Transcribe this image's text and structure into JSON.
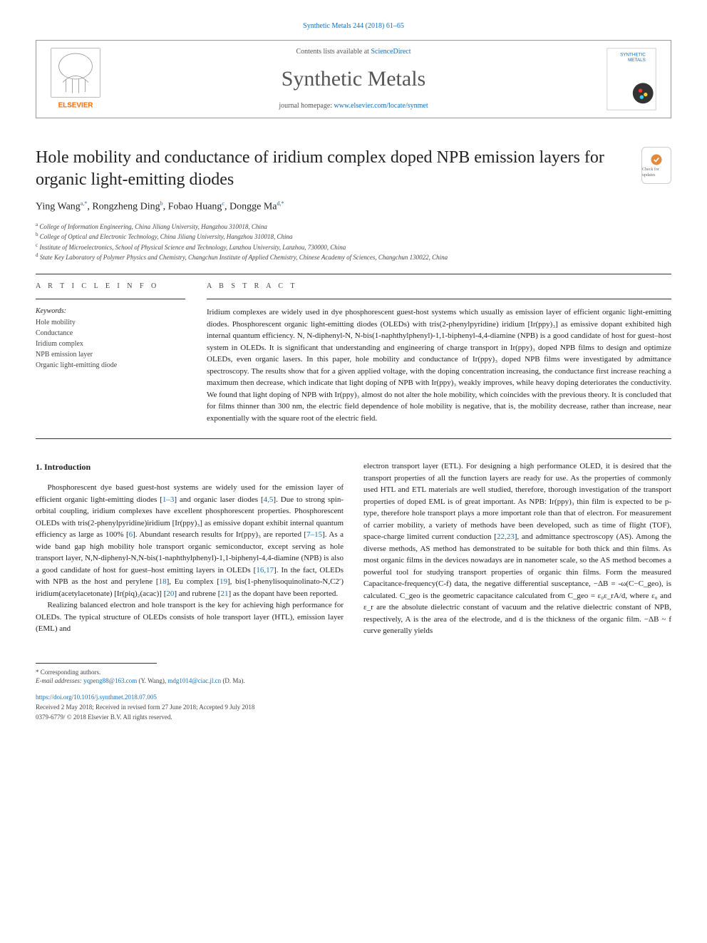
{
  "journal_ref_link": "Synthetic Metals 244 (2018) 61–65",
  "contents_text": "Contents lists available at ",
  "contents_link": "ScienceDirect",
  "journal_title": "Synthetic Metals",
  "homepage_text": "journal homepage: ",
  "homepage_link": "www.elsevier.com/locate/synmet",
  "article_title": "Hole mobility and conductance of iridium complex doped NPB emission layers for organic light-emitting diodes",
  "updates_label": "Check for updates",
  "authors": [
    {
      "name": "Ying Wang",
      "mark": "a,*"
    },
    {
      "name": "Rongzheng Ding",
      "mark": "b"
    },
    {
      "name": "Fobao Huang",
      "mark": "c"
    },
    {
      "name": "Dongge Ma",
      "mark": "d,*"
    }
  ],
  "affiliations": [
    {
      "mark": "a",
      "text": "College of Information Engineering, China Jiliang University, Hangzhou 310018, China"
    },
    {
      "mark": "b",
      "text": "College of Optical and Electronic Technology, China Jiliang University, Hangzhou 310018, China"
    },
    {
      "mark": "c",
      "text": "Institute of Microelectronics, School of Physical Science and Technology, Lanzhou University, Lanzhou, 730000, China"
    },
    {
      "mark": "d",
      "text": "State Key Laboratory of Polymer Physics and Chemistry, Changchun Institute of Applied Chemistry, Chinese Academy of Sciences, Changchun 130022, China"
    }
  ],
  "article_info_label": "A R T I C L E  I N F O",
  "keywords_label": "Keywords:",
  "keywords": [
    "Hole mobility",
    "Conductance",
    "Iridium complex",
    "NPB emission layer",
    "Organic light-emitting diode"
  ],
  "abstract_label": "A B S T R A C T",
  "abstract_text": "Iridium complexes are widely used in dye phosphorescent guest-host systems which usually as emission layer of efficient organic light-emitting diodes. Phosphorescent organic light-emitting diodes (OLEDs) with tris(2-phenylpyridine) iridium [Ir(ppy)₃] as emissive dopant exhibited high internal quantum efficiency. N, N-diphenyl-N, N-bis(1-naphthylphenyl)-1,1-biphenyl-4,4-diamine (NPB) is a good candidate of host for guest–host system in OLEDs. It is significant that understanding and engineering of charge transport in Ir(ppy)₃ doped NPB films to design and optimize OLEDs, even organic lasers. In this paper, hole mobility and conductance of Ir(ppy)₃ doped NPB films were investigated by admittance spectroscopy. The results show that for a given applied voltage, with the doping concentration increasing, the conductance first increase reaching a maximum then decrease, which indicate that light doping of NPB with Ir(ppy)₃ weakly improves, while heavy doping deteriorates the conductivity. We found that light doping of NPB with Ir(ppy)₃ almost do not alter the hole mobility, which coincides with the previous theory. It is concluded that for films thinner than 300 nm, the electric field dependence of hole mobility is negative, that is, the mobility decrease, rather than increase, near exponentially with the square root of the electric field.",
  "intro_heading": "1. Introduction",
  "intro_p1": "Phosphorescent dye based guest-host systems are widely used for the emission layer of efficient organic light-emitting diodes [1–3] and organic laser diodes [4,5]. Due to strong spin-orbital coupling, iridium complexes have excellent phosphorescent properties. Phosphorescent OLEDs with tris(2-phenylpyridine)iridium [Ir(ppy)₃] as emissive dopant exhibit internal quantum efficiency as large as 100% [6]. Abundant research results for Ir(ppy)₃ are reported [7–15]. As a wide band gap high mobility hole transport organic semiconductor, except serving as hole transport layer, N,N-diphenyl-N,N-bis(1-naphthylphenyl)-1,1-biphenyl-4,4-diamine (NPB) is also a good candidate of host for guest–host emitting layers in OLEDs [16,17]. In the fact, OLEDs with NPB as the host and perylene [18], Eu complex [19], bis(1-phenylisoquinolinato-N,C2′) iridium(acetylacetonate) [Ir(piq)₂(acac)] [20] and rubrene [21] as the dopant have been reported.",
  "intro_p2": "Realizing balanced electron and hole transport is the key for achieving high performance for OLEDs. The typical structure of OLEDs consists of hole transport layer (HTL), emission layer (EML) and ",
  "intro_p3": "electron transport layer (ETL). For designing a high performance OLED, it is desired that the transport properties of all the function layers are ready for use. As the properties of commonly used HTL and ETL materials are well studied, therefore, thorough investigation of the transport properties of doped EML is of great important. As NPB: Ir(ppy)₃ thin film is expected to be p-type, therefore hole transport plays a more important role than that of electron. For measurement of carrier mobility, a variety of methods have been developed, such as time of flight (TOF), space-charge limited current conduction [22,23], and admittance spectroscopy (AS). Among the diverse methods, AS method has demonstrated to be suitable for both thick and thin films. As most organic films in the devices nowadays are in nanometer scale, so the AS method becomes a powerful tool for studying transport properties of organic thin films. Form the measured Capacitance-frequency(C-f) data, the negative differential susceptance, −ΔB = -ω(C−C_geo), is calculated. C_geo is the geometric capacitance calculated from C_geo = ε₀ε_rA/d, where ε₀ and ε_r are the absolute dielectric constant of vacuum and the relative dielectric constant of NPB, respectively, A is the area of the electrode, and d is the thickness of the organic film. −ΔB ~ f curve generally yields",
  "corresponding_label": "* Corresponding authors.",
  "email_label": "E-mail addresses: ",
  "emails": [
    {
      "addr": "yqpeng88@163.com",
      "who": "(Y. Wang)"
    },
    {
      "addr": "mdg1014@ciac.jl.cn",
      "who": "(D. Ma)"
    }
  ],
  "doi": "https://doi.org/10.1016/j.synthmet.2018.07.005",
  "received": "Received 2 May 2018; Received in revised form 27 June 2018; Accepted 9 July 2018",
  "copyright": "0379-6779/ © 2018 Elsevier B.V. All rights reserved.",
  "colors": {
    "link": "#1a6db3",
    "text": "#222222",
    "muted": "#555555",
    "rule": "#333333",
    "elsevier_orange": "#ff6a00"
  }
}
